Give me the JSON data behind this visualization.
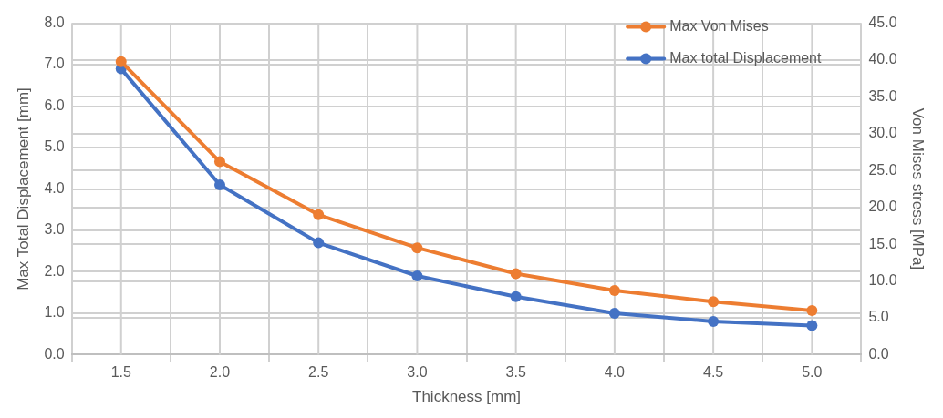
{
  "chart_data": {
    "type": "line",
    "xlabel": "Thickness [mm]",
    "ylabel": "Max Total Displacement [mm]",
    "y2label": "Von Mises stress [MPa]",
    "categories": [
      "1.5",
      "2.0",
      "2.5",
      "3.0",
      "3.5",
      "4.0",
      "4.5",
      "5.0"
    ],
    "series": [
      {
        "name": "Max Von Mises",
        "color": "#ed7d31",
        "axis": "y2",
        "values": [
          39.8,
          26.2,
          19.0,
          14.5,
          11.0,
          8.7,
          7.2,
          6.0
        ]
      },
      {
        "name": "Max total Displacement",
        "color": "#4472c4",
        "values": [
          6.9,
          4.1,
          2.7,
          1.9,
          1.4,
          1.0,
          0.8,
          0.7
        ]
      }
    ],
    "ylim": [
      0,
      8
    ],
    "yticks": [
      {
        "value": 0,
        "label": "0.0"
      },
      {
        "value": 1,
        "label": "1.0"
      },
      {
        "value": 2,
        "label": "2.0"
      },
      {
        "value": 3,
        "label": "3.0"
      },
      {
        "value": 4,
        "label": "4.0"
      },
      {
        "value": 5,
        "label": "5.0"
      },
      {
        "value": 6,
        "label": "6.0"
      },
      {
        "value": 7,
        "label": "7.0"
      },
      {
        "value": 8,
        "label": "8.0"
      }
    ],
    "y2lim": [
      0,
      45
    ],
    "y2ticks": [
      {
        "value": 0,
        "label": "0.0"
      },
      {
        "value": 5,
        "label": "5.0"
      },
      {
        "value": 10,
        "label": "10.0"
      },
      {
        "value": 15,
        "label": "15.0"
      },
      {
        "value": 20,
        "label": "20.0"
      },
      {
        "value": 25,
        "label": "25.0"
      },
      {
        "value": 30,
        "label": "30.0"
      },
      {
        "value": 35,
        "label": "35.0"
      },
      {
        "value": 40,
        "label": "40.0"
      },
      {
        "value": 45,
        "label": "45.0"
      }
    ],
    "grid": true,
    "legend": "top right",
    "marker": "circle",
    "line_style": "solid"
  }
}
